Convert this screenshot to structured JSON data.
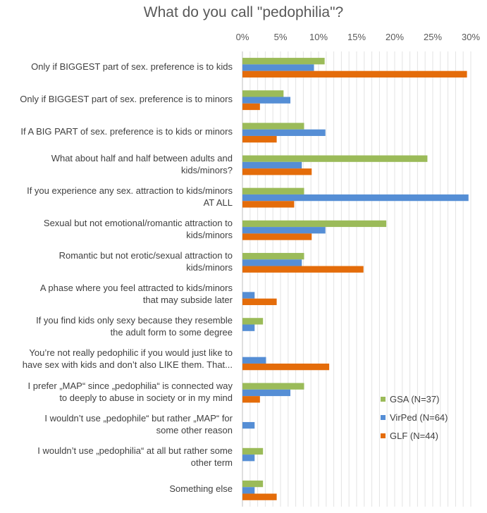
{
  "chart_data": {
    "type": "bar",
    "orientation": "horizontal",
    "title": "What do you call \"pedophilia\"?",
    "xlim": [
      0,
      30
    ],
    "x_ticks": [
      "0%",
      "5%",
      "10%",
      "15%",
      "20%",
      "25%",
      "30%"
    ],
    "grid": true,
    "legend_position": "right",
    "categories": [
      "Only if BIGGEST part of sex. preference is to kids",
      "Only if BIGGEST part of sex. preference is to minors",
      "If A BIG PART of sex. preference is to kids or minors",
      "What about half and half between adults and\nkids/minors?",
      "If you experience any sex. attraction to kids/minors\nAT ALL",
      "Sexual but not emotional/romantic attraction to\nkids/minors",
      "Romantic but not erotic/sexual attraction to\nkids/minors",
      "A phase where you feel attracted to kids/minors\nthat may subside later",
      "If you find kids only sexy because they resemble\nthe adult form to some degree",
      "You’re not really pedophilic if you would just like to\nhave sex with kids and don’t also LIKE them. That...",
      "I prefer „MAP“ since „pedophilia“ is connected way\nto deeply to abuse in society or in my mind",
      "I wouldn’t use „pedophile“ but rather „MAP“ for\nsome other reason",
      "I wouldn’t use „pedophilia“ at all but rather some\nother term",
      "Something else"
    ],
    "series": [
      {
        "name": "GSA (N=37)",
        "color": "#9BBB59",
        "values": [
          10.8,
          5.4,
          8.1,
          24.3,
          8.1,
          18.9,
          8.1,
          0,
          2.7,
          0,
          8.1,
          0,
          2.7,
          2.7
        ]
      },
      {
        "name": "VirPed (N=64)",
        "color": "#558ED5",
        "values": [
          9.4,
          6.3,
          10.9,
          7.8,
          29.7,
          10.9,
          7.8,
          1.6,
          1.6,
          3.1,
          6.3,
          1.6,
          1.6,
          1.6
        ]
      },
      {
        "name": "GLF (N=44)",
        "color": "#E46C0A",
        "values": [
          29.5,
          2.3,
          4.5,
          9.1,
          6.8,
          9.1,
          15.9,
          4.5,
          0,
          11.4,
          2.3,
          0,
          0,
          4.5
        ]
      }
    ]
  }
}
